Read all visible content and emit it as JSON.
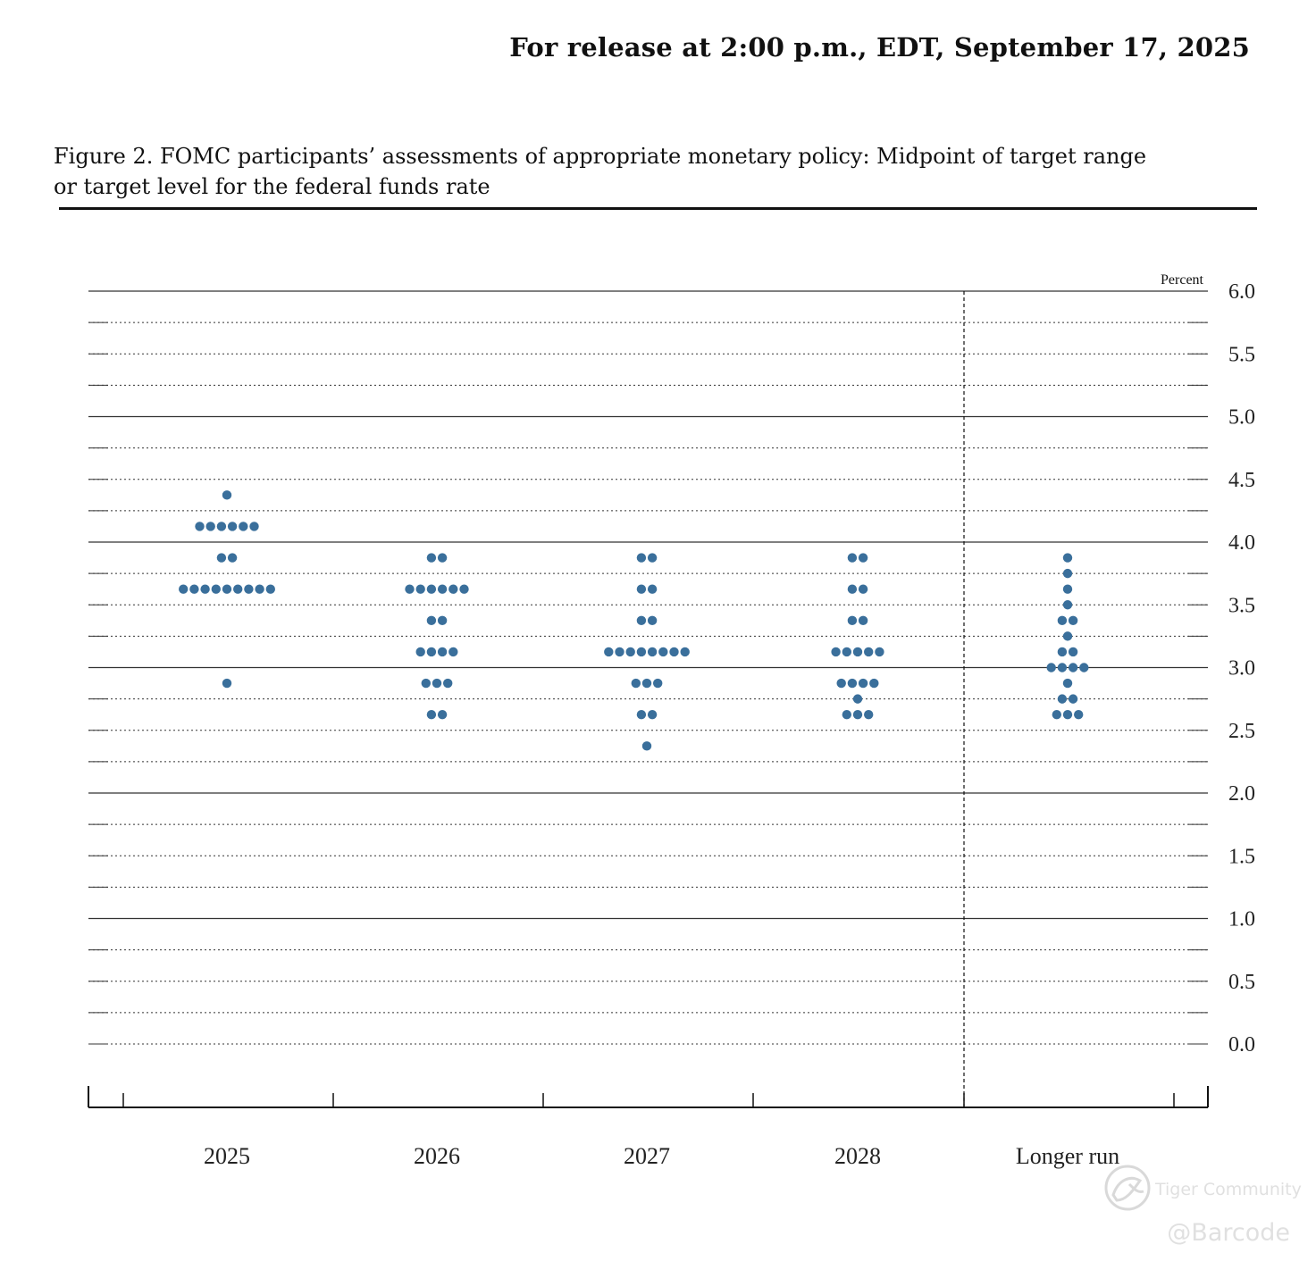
{
  "header": {
    "release": "For release at 2:00 p.m., EDT, September 17, 2025"
  },
  "figure": {
    "title_line1": "Figure 2. FOMC participants’ assessments of appropriate monetary policy: Midpoint of target range",
    "title_line2": "or target level for the federal funds rate"
  },
  "watermark": {
    "brand": "Tiger Community",
    "handle": "@Barcode"
  },
  "colors": {
    "dot": "#3a6f9b",
    "axis": "#111111",
    "grid": "#333333"
  },
  "chart_data": {
    "type": "scatter",
    "subtype": "dot plot",
    "unit_label": "Percent",
    "categories": [
      "2025",
      "2026",
      "2027",
      "2028",
      "Longer run"
    ],
    "ylim": [
      0.0,
      6.0
    ],
    "yticks": [
      "0.0",
      "0.5",
      "1.0",
      "1.5",
      "2.0",
      "2.5",
      "3.0",
      "3.5",
      "4.0",
      "4.5",
      "5.0",
      "5.5",
      "6.0"
    ],
    "minor_grid_step": 0.25,
    "grid": true,
    "separator_before": "Longer run",
    "dots": {
      "2025": [
        {
          "value": 4.375,
          "count": 1
        },
        {
          "value": 4.125,
          "count": 6
        },
        {
          "value": 3.875,
          "count": 2
        },
        {
          "value": 3.625,
          "count": 9
        },
        {
          "value": 2.875,
          "count": 1
        }
      ],
      "2026": [
        {
          "value": 3.875,
          "count": 2
        },
        {
          "value": 3.625,
          "count": 6
        },
        {
          "value": 3.375,
          "count": 2
        },
        {
          "value": 3.125,
          "count": 4
        },
        {
          "value": 2.875,
          "count": 3
        },
        {
          "value": 2.625,
          "count": 2
        }
      ],
      "2027": [
        {
          "value": 3.875,
          "count": 2
        },
        {
          "value": 3.625,
          "count": 2
        },
        {
          "value": 3.375,
          "count": 2
        },
        {
          "value": 3.125,
          "count": 8
        },
        {
          "value": 2.875,
          "count": 3
        },
        {
          "value": 2.625,
          "count": 2
        },
        {
          "value": 2.375,
          "count": 1
        }
      ],
      "2028": [
        {
          "value": 3.875,
          "count": 2
        },
        {
          "value": 3.625,
          "count": 2
        },
        {
          "value": 3.375,
          "count": 2
        },
        {
          "value": 3.125,
          "count": 5
        },
        {
          "value": 2.875,
          "count": 4
        },
        {
          "value": 2.75,
          "count": 1
        },
        {
          "value": 2.625,
          "count": 3
        }
      ],
      "Longer run": [
        {
          "value": 3.875,
          "count": 1
        },
        {
          "value": 3.75,
          "count": 1
        },
        {
          "value": 3.625,
          "count": 1
        },
        {
          "value": 3.5,
          "count": 1
        },
        {
          "value": 3.375,
          "count": 2
        },
        {
          "value": 3.25,
          "count": 1
        },
        {
          "value": 3.125,
          "count": 2
        },
        {
          "value": 3.0,
          "count": 4
        },
        {
          "value": 2.875,
          "count": 1
        },
        {
          "value": 2.75,
          "count": 2
        },
        {
          "value": 2.625,
          "count": 3
        }
      ]
    }
  }
}
